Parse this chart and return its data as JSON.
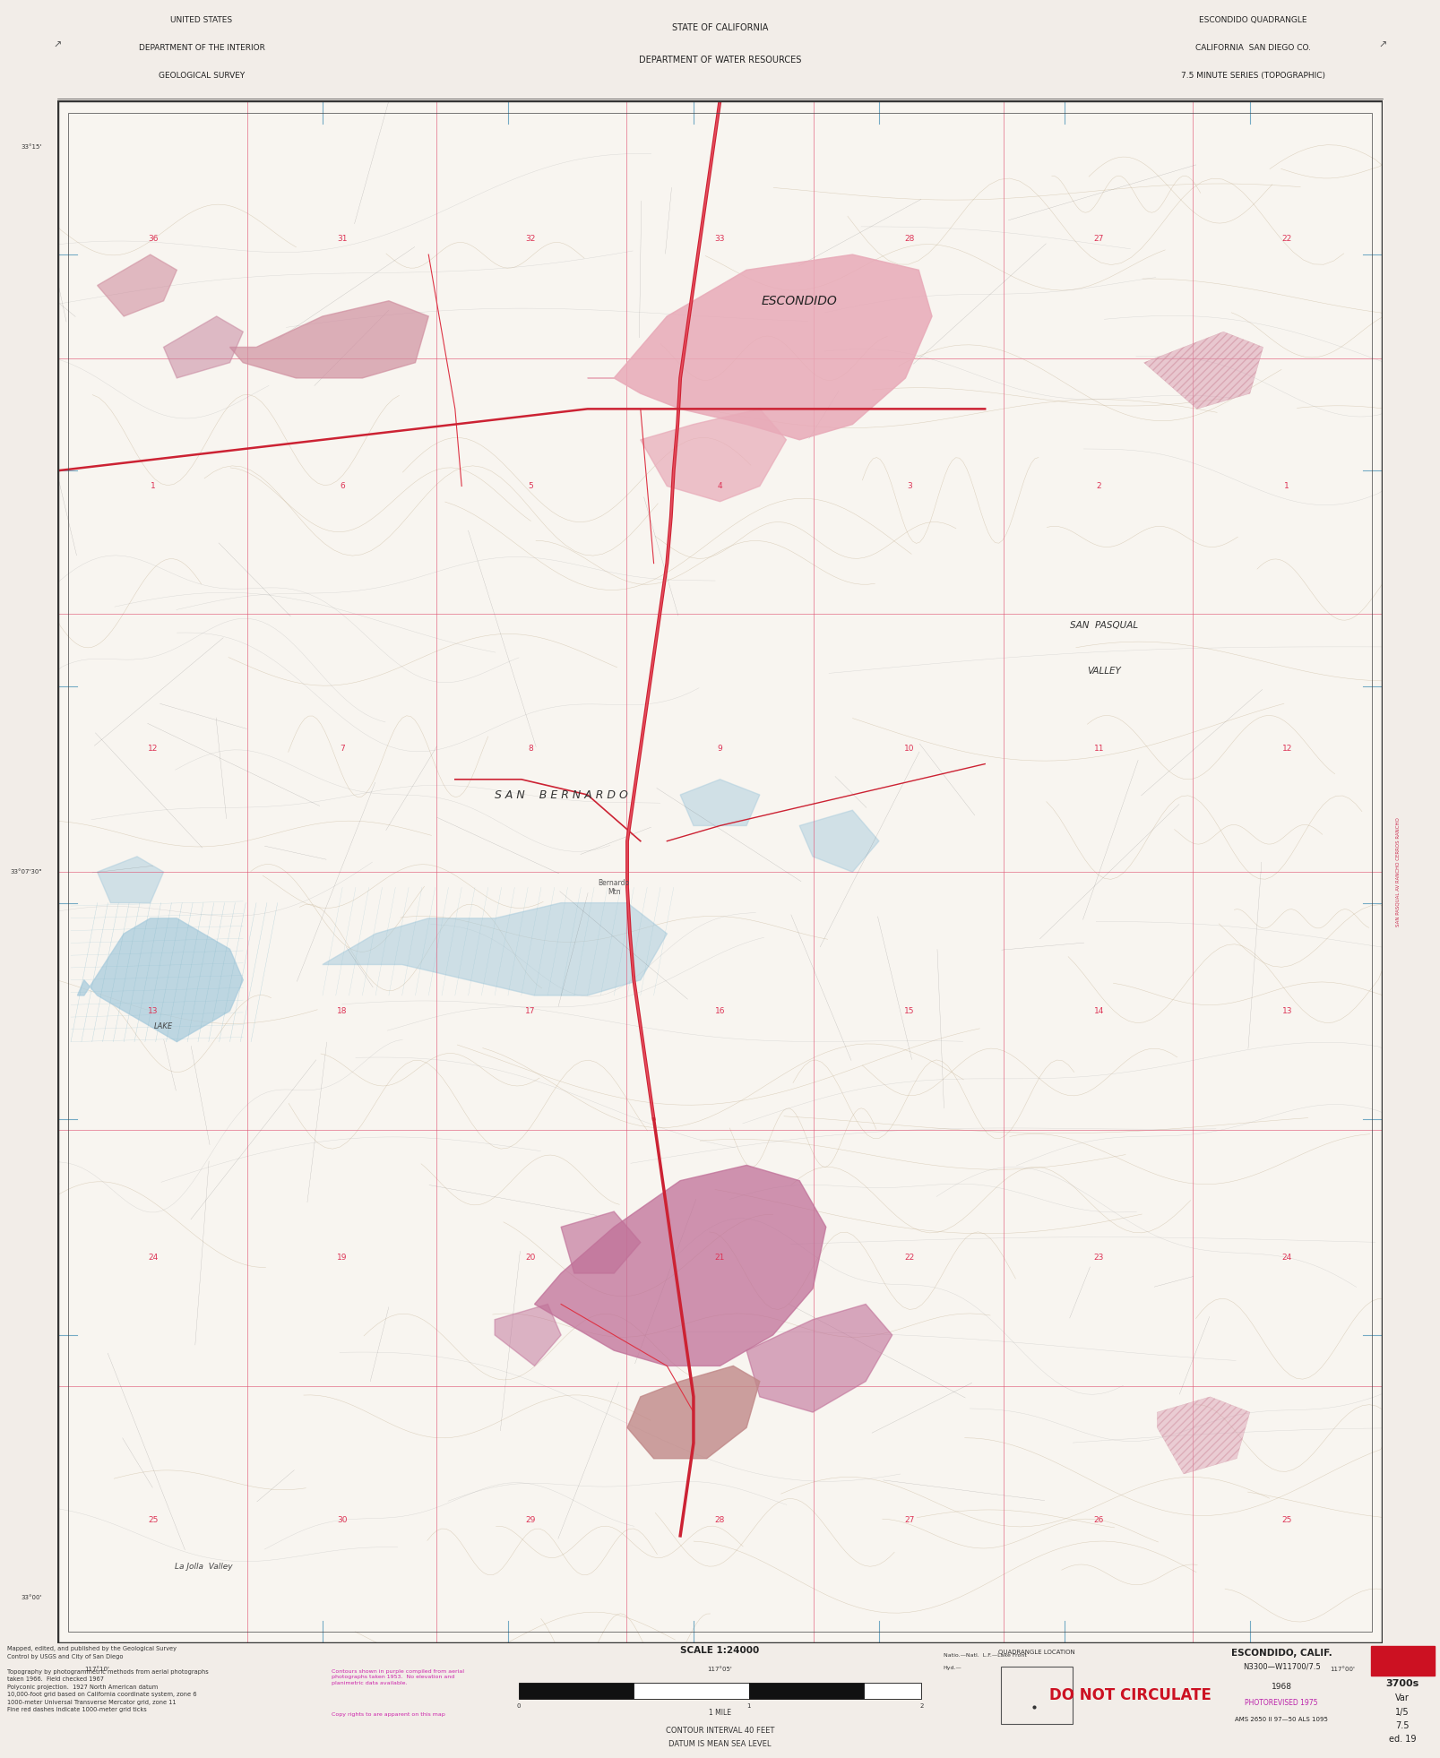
{
  "bg_color": "#f2ede8",
  "map_bg": "#f5f0eb",
  "title_left_lines": [
    "UNITED STATES",
    "DEPARTMENT OF THE INTERIOR",
    "GEOLOGICAL SURVEY"
  ],
  "title_center_lines": [
    "STATE OF CALIFORNIA",
    "DEPARTMENT OF WATER RESOURCES"
  ],
  "title_right_lines": [
    "ESCONDIDO QUADRANGLE",
    "CALIFORNIA  SAN DIEGO CO.",
    "7.5 MINUTE SERIES (TOPOGRAPHIC)"
  ],
  "bottom_label": "ESCONDIDO, CALIF.",
  "bottom_series": "N3300—W11700/7.5",
  "bottom_year": "1968",
  "bottom_photorevised": "PHOTOREVISED 1975",
  "bottom_ams": "AMS 2650 II 97—50 ALS 1095",
  "bottom_ref": "3700s",
  "bottom_var": "Var",
  "bottom_scale_num": "1/5",
  "bottom_75": "7.5",
  "bottom_ed": "ed. 19",
  "do_not_circulate": "DO NOT CIRCULATE",
  "scale_text": "SCALE 1:24000",
  "contour_interval": "CONTOUR INTERVAL 40 FEET",
  "datum": "DATUM IS MEAN SEA LEVEL",
  "notes": "Mapped, edited, and published by the Geological Survey\nControl by USGS and City of San Diego\n\nTopography by photogrammetric methods from aerial photographs\ntaken 1966.  Field checked 1967\nPolyconic projection.  1927 North American datum\n10,000-foot grid based on California coordinate system, zone 6\n1000-meter Universal Transverse Mercator grid, zone 11\nFine red dashes indicate 1000-meter grid ticks",
  "colors": {
    "map_white": "#f8f5f0",
    "urban_pink": "#e8aab8",
    "urban_pink2": "#d99ab0",
    "urban_purple": "#c07098",
    "urban_brown": "#c08888",
    "water_blue": "#aaccdd",
    "water_hatch": "#88bbcc",
    "contour": "#c4b090",
    "road_red": "#cc2233",
    "road_red2": "#dd4455",
    "grid_red": "#ee4466",
    "grid_blue": "#4488bb",
    "text_dark": "#2a2a2a",
    "text_red": "#cc1122",
    "text_magenta": "#bb22aa",
    "border": "#333333",
    "hatch_pink": "#dd8899",
    "section_red": "#dd3355",
    "light_topo": "#ede8e2"
  }
}
